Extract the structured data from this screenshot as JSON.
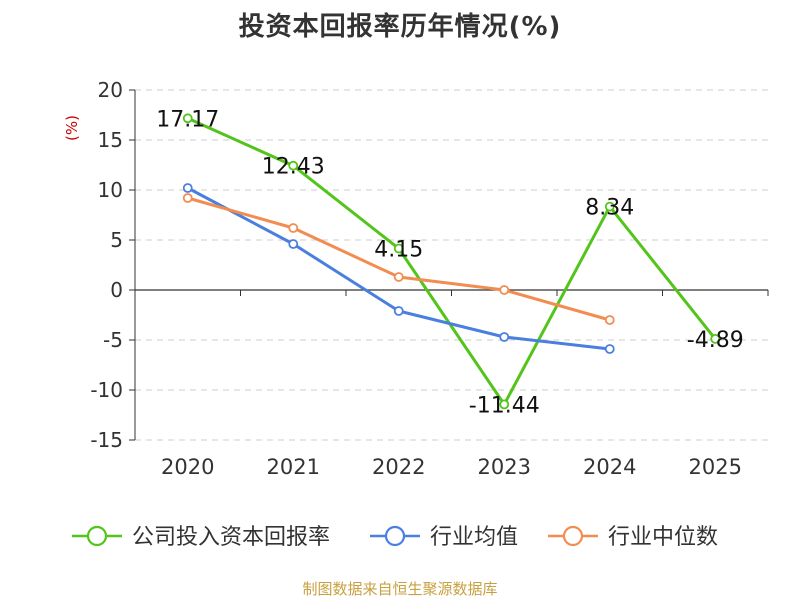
{
  "chart_data": {
    "type": "line",
    "title": "投资本回报率历年情况(%)",
    "ylabel": "(%)",
    "xlabel": "",
    "categories": [
      "2020",
      "2021",
      "2022",
      "2023",
      "2024",
      "2025"
    ],
    "ylim": [
      -15,
      20
    ],
    "yticks": [
      20,
      15,
      10,
      5,
      0,
      -5,
      -10,
      -15
    ],
    "grid": true,
    "legend_position": "bottom",
    "series": [
      {
        "name": "公司投入资本回报率",
        "color": "#52c41a",
        "values": [
          17.17,
          12.43,
          4.15,
          -11.44,
          8.34,
          -4.89
        ],
        "labels": [
          "17.17",
          "12.43",
          "4.15",
          "-11.44",
          "8.34",
          "-4.89"
        ]
      },
      {
        "name": "行业均值",
        "color": "#4a7fe0",
        "values": [
          10.2,
          4.6,
          -2.1,
          -4.7,
          -5.9,
          null
        ],
        "labels": []
      },
      {
        "name": "行业中位数",
        "color": "#f28c50",
        "values": [
          9.2,
          6.2,
          1.3,
          0.0,
          -3.0,
          null
        ],
        "labels": []
      }
    ]
  },
  "footer": {
    "source": "制图数据来自恒生聚源数据库"
  }
}
